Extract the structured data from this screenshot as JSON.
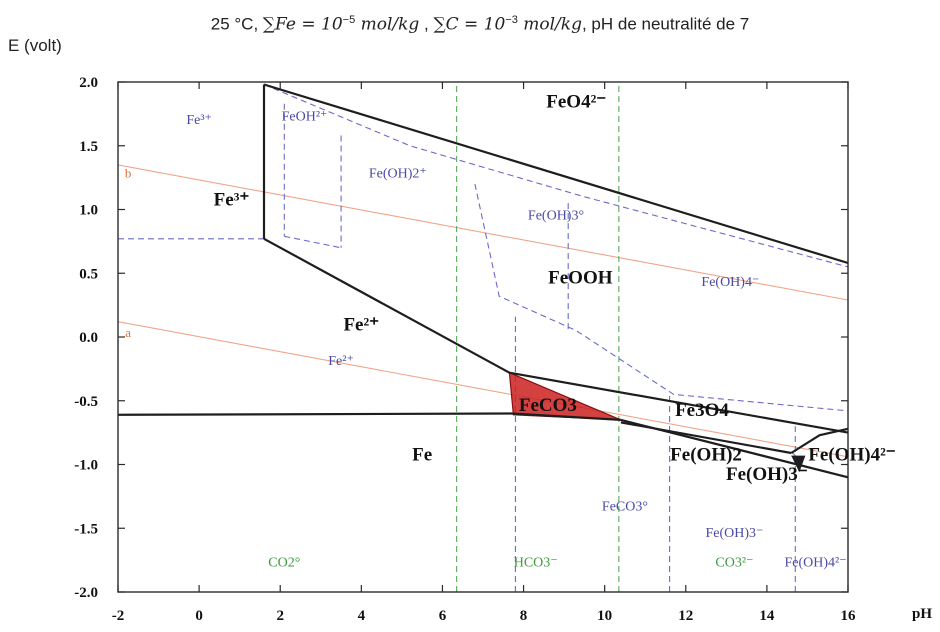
{
  "chart_data": {
    "type": "line",
    "title": "25 °C, ∑Fe = 10⁻⁵ mol/kg , ∑C = 10⁻³ mol/kg, pH de neutralité de 7",
    "title_parts": {
      "lead": "25 °C, ",
      "fe": "∑Fe = 10",
      "fe_exp": "−5",
      "fe_unit": " mol/kg",
      "sep1": " , ",
      "c": "∑C = 10",
      "c_exp": "−3",
      "c_unit": " mol/kg",
      "tail": ", pH de neutralité de 7"
    },
    "xlabel": "pH",
    "ylabel": "E (volt)",
    "xlim": [
      -2,
      16
    ],
    "ylim": [
      -2.0,
      2.0
    ],
    "xticks": [
      "-2",
      "0",
      "2",
      "4",
      "6",
      "8",
      "10",
      "12",
      "14",
      "16"
    ],
    "yticks": [
      "2.0",
      "1.5",
      "1.0",
      "0.5",
      "0.0",
      "-0.5",
      "-1.0",
      "-1.5",
      "-2.0"
    ],
    "x_tick_values": [
      -2,
      0,
      2,
      4,
      6,
      8,
      10,
      12,
      14,
      16
    ],
    "y_tick_values": [
      2.0,
      1.5,
      1.0,
      0.5,
      0.0,
      -0.5,
      -1.0,
      -1.5,
      -2.0
    ],
    "highlight_region": {
      "label": "FeCO3",
      "color": "#cc2020",
      "polygon": [
        [
          7.65,
          -0.28
        ],
        [
          10.4,
          -0.65
        ],
        [
          7.75,
          -0.61
        ]
      ]
    },
    "solid_boundaries": [
      {
        "points": [
          [
            -2,
            -0.61
          ],
          [
            7.7,
            -0.6
          ],
          [
            10.4,
            -0.65
          ]
        ]
      },
      {
        "points": [
          [
            1.6,
            1.98
          ],
          [
            1.6,
            0.77
          ]
        ]
      },
      {
        "points": [
          [
            1.6,
            0.77
          ],
          [
            7.65,
            -0.28
          ]
        ]
      },
      {
        "points": [
          [
            1.6,
            1.98
          ],
          [
            16,
            0.58
          ]
        ]
      },
      {
        "points": [
          [
            7.65,
            -0.28
          ],
          [
            16,
            -0.75
          ]
        ]
      },
      {
        "points": [
          [
            10.4,
            -0.65
          ],
          [
            16,
            -1.1
          ]
        ]
      },
      {
        "points": [
          [
            10.4,
            -0.67
          ],
          [
            14.6,
            -0.91
          ]
        ]
      },
      {
        "points": [
          [
            14.6,
            -0.91
          ],
          [
            15.3,
            -0.77
          ],
          [
            16,
            -0.72
          ]
        ]
      }
    ],
    "dashed_blue_boundaries": [
      {
        "points": [
          [
            -2,
            0.77
          ],
          [
            1.6,
            0.77
          ]
        ]
      },
      {
        "points": [
          [
            2.1,
            1.83
          ],
          [
            2.1,
            0.79
          ]
        ]
      },
      {
        "points": [
          [
            3.5,
            1.58
          ],
          [
            3.5,
            0.7
          ]
        ]
      },
      {
        "points": [
          [
            2.1,
            0.79
          ],
          [
            3.5,
            0.7
          ]
        ]
      },
      {
        "points": [
          [
            1.6,
            1.98
          ],
          [
            5.2,
            1.5
          ],
          [
            9.5,
            1.1
          ],
          [
            16,
            0.55
          ]
        ]
      },
      {
        "points": [
          [
            6.8,
            1.2
          ],
          [
            7.4,
            0.32
          ],
          [
            9.3,
            0.05
          ],
          [
            11.7,
            -0.45
          ],
          [
            16,
            -0.58
          ]
        ]
      },
      {
        "points": [
          [
            9.1,
            1.05
          ],
          [
            9.1,
            0.05
          ]
        ]
      },
      {
        "points": [
          [
            7.8,
            -2.0
          ],
          [
            7.8,
            0.16
          ]
        ]
      },
      {
        "points": [
          [
            11.6,
            -2.0
          ],
          [
            11.6,
            -0.46
          ]
        ]
      },
      {
        "points": [
          [
            14.7,
            -2.0
          ],
          [
            14.7,
            -0.7
          ]
        ]
      },
      {
        "points": [
          [
            14.6,
            -0.9
          ],
          [
            14.9,
            -0.99
          ]
        ]
      }
    ],
    "dashed_green_lines": [
      {
        "x": 6.35
      },
      {
        "x": 10.35
      }
    ],
    "orange_lines": [
      {
        "label": "a",
        "points": [
          [
            -2,
            0.12
          ],
          [
            16,
            -0.94
          ]
        ]
      },
      {
        "label": "b",
        "points": [
          [
            -2,
            1.35
          ],
          [
            16,
            0.29
          ]
        ]
      }
    ],
    "species_labels": [
      {
        "text": "FeO4²⁻",
        "x": 9.3,
        "y": 1.8,
        "style": "big"
      },
      {
        "text": "Fe³⁺",
        "x": 0.8,
        "y": 1.03,
        "style": "big"
      },
      {
        "text": "Fe²⁺",
        "x": 4.0,
        "y": 0.05,
        "style": "big"
      },
      {
        "text": "FeOOH",
        "x": 9.4,
        "y": 0.42,
        "style": "big"
      },
      {
        "text": "FeCO3",
        "x": 8.6,
        "y": -0.58,
        "style": "big"
      },
      {
        "text": "Fe3O4",
        "x": 12.4,
        "y": -0.62,
        "style": "big"
      },
      {
        "text": "Fe",
        "x": 5.5,
        "y": -0.97,
        "style": "big"
      },
      {
        "text": "Fe(OH)2",
        "x": 12.5,
        "y": -0.97,
        "style": "big"
      },
      {
        "text": "Fe(OH)3⁻",
        "x": 14.0,
        "y": -1.12,
        "style": "big"
      },
      {
        "text": "Fe(OH)4²⁻",
        "x": 16.1,
        "y": -0.97,
        "style": "big"
      },
      {
        "text": "Fe³⁺",
        "x": 0.0,
        "y": 1.67,
        "style": "blue"
      },
      {
        "text": "FeOH²⁺",
        "x": 2.6,
        "y": 1.7,
        "style": "blue"
      },
      {
        "text": "Fe(OH)2⁺",
        "x": 4.9,
        "y": 1.25,
        "style": "blue"
      },
      {
        "text": "Fe(OH)3°",
        "x": 8.8,
        "y": 0.92,
        "style": "blue"
      },
      {
        "text": "Fe(OH)4⁻",
        "x": 13.1,
        "y": 0.4,
        "style": "blue"
      },
      {
        "text": "Fe²⁺",
        "x": 3.5,
        "y": -0.22,
        "style": "blue"
      },
      {
        "text": "FeCO3°",
        "x": 10.5,
        "y": -1.36,
        "style": "blue"
      },
      {
        "text": "Fe(OH)3⁻",
        "x": 13.2,
        "y": -1.57,
        "style": "blue"
      },
      {
        "text": "Fe(OH)4²⁻",
        "x": 15.2,
        "y": -1.8,
        "style": "blue"
      },
      {
        "text": "CO2°",
        "x": 2.1,
        "y": -1.8,
        "style": "green"
      },
      {
        "text": "HCO3⁻",
        "x": 8.3,
        "y": -1.8,
        "style": "green"
      },
      {
        "text": "CO3²⁻",
        "x": 13.2,
        "y": -1.8,
        "style": "green"
      },
      {
        "text": "a",
        "x": -1.75,
        "y": 0.0,
        "style": "orange"
      },
      {
        "text": "b",
        "x": -1.75,
        "y": 1.25,
        "style": "orange"
      }
    ],
    "grid": false,
    "legend": "none"
  }
}
